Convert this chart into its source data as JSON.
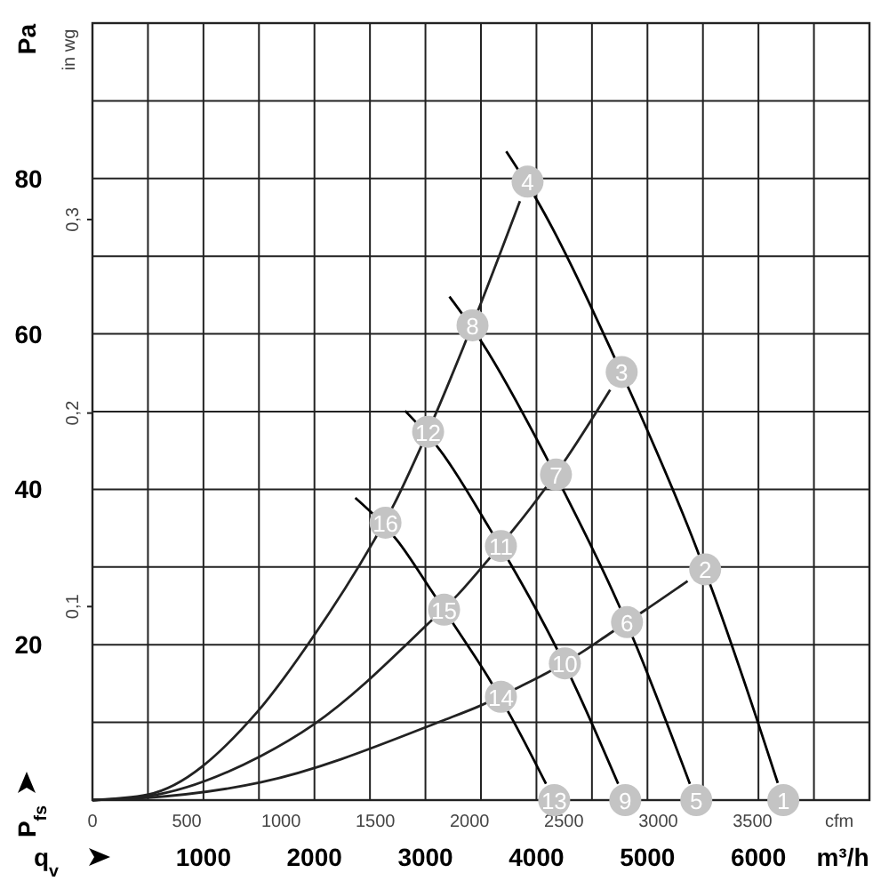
{
  "chart_data": {
    "type": "line",
    "xlabel": "q$_{v}$",
    "ylabel": "P$_{fs}$",
    "y2label": "in wg",
    "x2label": "cfm",
    "annotations": [
      "Pa",
      "m³/h",
      {
        "text": "1",
        "x": 6224,
        "y": 0
      },
      {
        "text": "2",
        "x": 5520,
        "y": 29.7
      },
      {
        "text": "3",
        "x": 4768,
        "y": 55.1
      },
      {
        "text": "4",
        "x": 3920,
        "y": 79.6
      },
      {
        "text": "5",
        "x": 5440,
        "y": 0
      },
      {
        "text": "6",
        "x": 4816,
        "y": 22.9
      },
      {
        "text": "7",
        "x": 4176,
        "y": 41.9
      },
      {
        "text": "8",
        "x": 3424,
        "y": 61.1
      },
      {
        "text": "9",
        "x": 4800,
        "y": 0
      },
      {
        "text": "10",
        "x": 4256,
        "y": 17.6
      },
      {
        "text": "11",
        "x": 3680,
        "y": 32.7
      },
      {
        "text": "12",
        "x": 3024,
        "y": 47.4
      },
      {
        "text": "13",
        "x": 4160,
        "y": 0
      },
      {
        "text": "14",
        "x": 3680,
        "y": 13.3
      },
      {
        "text": "15",
        "x": 3168,
        "y": 24.5
      },
      {
        "text": "16",
        "x": 2640,
        "y": 35.7
      }
    ],
    "xlim": [
      0,
      7000
    ],
    "ylim": [
      0,
      100
    ],
    "y2lim": [
      0,
      0.4015
    ],
    "x2lim": [
      0,
      4120
    ],
    "xticks": [
      {
        "value": 0,
        "label": null
      },
      {
        "value": 500,
        "label": null
      },
      1000,
      {
        "value": 1500,
        "label": null
      },
      2000,
      {
        "value": 2500,
        "label": null
      },
      3000,
      {
        "value": 3500,
        "label": null
      },
      4000,
      {
        "value": 4500,
        "label": null
      },
      5000,
      {
        "value": 5500,
        "label": null
      },
      6000,
      {
        "value": 6500,
        "label": null
      },
      {
        "value": 7000,
        "label": null
      }
    ],
    "yticks": [
      {
        "value": 0,
        "label": null
      },
      {
        "value": 10,
        "label": null
      },
      20,
      {
        "value": 30,
        "label": null
      },
      40,
      {
        "value": 50,
        "label": null
      },
      60,
      {
        "value": 70,
        "label": null
      },
      80,
      {
        "value": 90,
        "label": null
      },
      {
        "value": 100,
        "label": null
      }
    ],
    "y2ticks": [
      {
        "value": 0.1,
        "label": "0,1"
      },
      {
        "value": 0.2,
        "label": "0,2"
      },
      {
        "value": 0.3,
        "label": "0,3"
      }
    ],
    "x2ticks": [
      0,
      500,
      1000,
      1500,
      2000,
      2500,
      3000,
      3500
    ],
    "grid": true,
    "series": [
      {
        "color": "#000000",
        "x": [
          3728,
          4005,
          4683,
          4843,
          5445,
          5582,
          6000,
          6174
        ],
        "values": [
          83.5,
          77.2,
          57.6,
          52.6,
          32.3,
          27.1,
          9.8,
          2.2
        ]
      },
      {
        "color": "#000000",
        "x": [
          3216,
          3518,
          4082,
          4259,
          4733,
          4886,
          5382
        ],
        "values": [
          64.8,
          58.7,
          44.3,
          39.4,
          25.4,
          20.3,
          2.1
        ]
      },
      {
        "color": "#000000",
        "x": [
          2816,
          3128,
          3576,
          3771,
          4165,
          4333,
          4736
        ],
        "values": [
          50.1,
          45.1,
          35.0,
          30.3,
          20.0,
          15.1,
          2.1
        ]
      },
      {
        "color": "#000000",
        "x": [
          2368,
          2747,
          3061,
          3274,
          3574,
          3768,
          4086
        ],
        "values": [
          38.9,
          33.4,
          26.8,
          22.2,
          15.6,
          10.8,
          2.1
        ]
      },
      {
        "color": "#222222",
        "x": [
          0,
          496,
          1488,
          1968,
          2536,
          2722,
          2942,
          3098,
          3350,
          3493,
          3851
        ],
        "values": [
          0,
          0.7,
          11.4,
          20.6,
          33.4,
          38.2,
          44.9,
          49.9,
          58.6,
          63.7,
          77.1
        ]
      },
      {
        "color": "#222222",
        "x": [
          0,
          496,
          1520,
          2000,
          3024,
          3296,
          3552,
          3798,
          4058,
          4280,
          4664
        ],
        "values": [
          0,
          0.5,
          5.7,
          9.8,
          22.7,
          26.5,
          30.7,
          34.9,
          39.7,
          44.2,
          52.8
        ]
      },
      {
        "color": "#222222",
        "x": [
          0,
          496,
          1520,
          3168,
          3502,
          3850,
          4086,
          4416,
          4656,
          4974,
          5362
        ],
        "values": [
          0,
          0.3,
          2.3,
          10.3,
          12.2,
          14.6,
          16.3,
          19.1,
          21.4,
          24.4,
          28.2
        ]
      },
      {
        "type": "scatter",
        "color": "#c4c4c4",
        "x": [
          6224,
          5520,
          4768,
          3920,
          5440,
          4816,
          4176,
          3424,
          4800,
          4256,
          3680,
          3024,
          4160,
          3680,
          3168,
          2640
        ],
        "values": [
          0,
          29.7,
          55.1,
          79.6,
          0,
          22.9,
          41.9,
          61.1,
          0,
          17.6,
          32.7,
          47.4,
          0,
          13.3,
          24.5,
          35.7
        ]
      }
    ]
  }
}
